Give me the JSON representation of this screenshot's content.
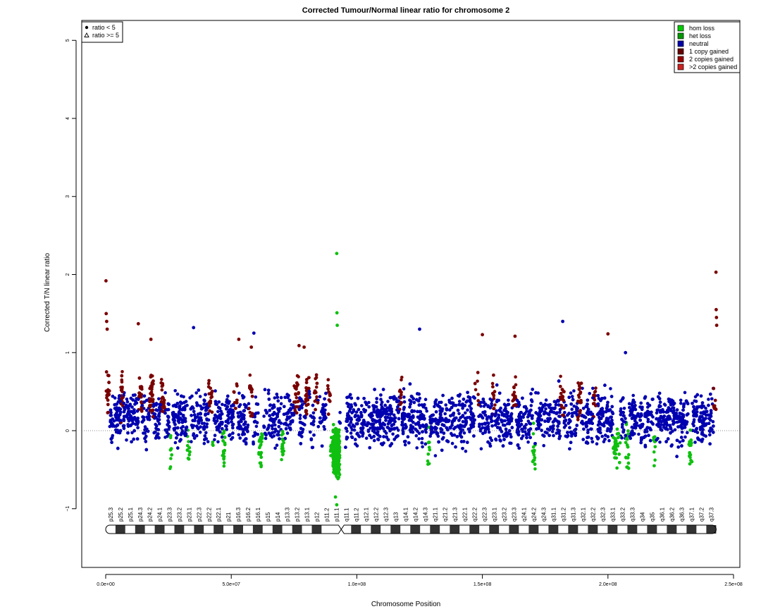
{
  "chart_data": {
    "type": "scatter",
    "title": "Corrected Tumour/Normal linear ratio for chromosome  2",
    "xlabel": "Chromosome Position",
    "ylabel": "Corrected T/N linear ratio",
    "xlim": [
      0,
      250000000
    ],
    "ylim": [
      -1,
      5
    ],
    "x_ticks": [
      {
        "value": 0,
        "label": "0.0e+00"
      },
      {
        "value": 50000000,
        "label": "5.0e+07"
      },
      {
        "value": 100000000,
        "label": "1.0e+08"
      },
      {
        "value": 150000000,
        "label": "1.5e+08"
      },
      {
        "value": 200000000,
        "label": "2.0e+08"
      },
      {
        "value": 250000000,
        "label": "2.5e+08"
      }
    ],
    "y_ticks": [
      {
        "value": -1,
        "label": "−1"
      },
      {
        "value": 0,
        "label": "0"
      },
      {
        "value": 1,
        "label": "1"
      },
      {
        "value": 2,
        "label": "2"
      },
      {
        "value": 3,
        "label": "3"
      },
      {
        "value": 4,
        "label": "4"
      },
      {
        "value": 5,
        "label": "5"
      }
    ],
    "reference_line": {
      "y": 0,
      "style": "dotted"
    },
    "shape_legend": {
      "position": "top-left",
      "items": [
        {
          "label": "ratio < 5",
          "shape": "circle"
        },
        {
          "label": "ratio >= 5",
          "shape": "triangle"
        }
      ]
    },
    "legend": {
      "position": "top-right",
      "items": [
        {
          "label": "hom loss",
          "color": "#00cc00"
        },
        {
          "label": "het loss",
          "color": "#009900"
        },
        {
          "label": "neutral",
          "color": "#0000aa"
        },
        {
          "label": "1 copy gained",
          "color": "#660000"
        },
        {
          "label": "2 copies gained",
          "color": "#990000"
        },
        {
          "label": ">2 copies gained",
          "color": "#cc2222"
        }
      ]
    },
    "series": [
      {
        "name": "neutral",
        "color": "#0000b0",
        "density": "dense",
        "x_range": [
          200000,
          243000000
        ],
        "y_range": [
          -0.6,
          1.1
        ]
      },
      {
        "name": "1 copy gained",
        "color": "#7a0000",
        "outliers": [
          [
            100000,
            1.92
          ],
          [
            200000,
            1.5
          ],
          [
            400000,
            1.4
          ],
          [
            600000,
            1.3
          ],
          [
            13000000,
            1.37
          ],
          [
            18000000,
            1.17
          ],
          [
            53000000,
            1.17
          ],
          [
            58000000,
            1.07
          ],
          [
            77000000,
            1.09
          ],
          [
            79000000,
            1.07
          ],
          [
            150000000,
            1.23
          ],
          [
            163000000,
            1.21
          ],
          [
            200000000,
            1.24
          ],
          [
            243000000,
            2.03
          ],
          [
            243100000,
            1.55
          ],
          [
            243200000,
            1.45
          ],
          [
            243300000,
            1.35
          ]
        ]
      },
      {
        "name": "het loss",
        "color": "#10c010",
        "outliers": [
          [
            92000000,
            2.27
          ],
          [
            92100000,
            1.51
          ],
          [
            92200000,
            1.35
          ],
          [
            92000000,
            -0.95
          ],
          [
            91500000,
            -0.85
          ]
        ]
      },
      {
        "name": "neutral",
        "color": "#0000b0",
        "outliers": [
          [
            35000000,
            1.32
          ],
          [
            59000000,
            1.25
          ],
          [
            125000000,
            1.3
          ],
          [
            182000000,
            1.4
          ],
          [
            207000000,
            1.0
          ]
        ]
      }
    ],
    "gain_segments": [
      {
        "start": 0,
        "end": 1500000
      },
      {
        "start": 6000000,
        "end": 7000000
      },
      {
        "start": 13000000,
        "end": 14500000
      },
      {
        "start": 17500000,
        "end": 19000000
      },
      {
        "start": 22000000,
        "end": 23500000
      },
      {
        "start": 41000000,
        "end": 42500000
      },
      {
        "start": 51000000,
        "end": 52500000
      },
      {
        "start": 57000000,
        "end": 58500000
      },
      {
        "start": 75000000,
        "end": 77000000
      },
      {
        "start": 79500000,
        "end": 81000000
      },
      {
        "start": 83000000,
        "end": 84500000
      },
      {
        "start": 88000000,
        "end": 89500000
      },
      {
        "start": 117000000,
        "end": 118000000
      },
      {
        "start": 147000000,
        "end": 148500000
      },
      {
        "start": 154000000,
        "end": 155000000
      },
      {
        "start": 162000000,
        "end": 163500000
      },
      {
        "start": 181000000,
        "end": 182500000
      },
      {
        "start": 188000000,
        "end": 189500000
      },
      {
        "start": 194000000,
        "end": 195500000
      },
      {
        "start": 242000000,
        "end": 243100000
      }
    ],
    "loss_segments": [
      {
        "start": 25500000,
        "end": 26500000
      },
      {
        "start": 32500000,
        "end": 33500000
      },
      {
        "start": 42000000,
        "end": 43000000
      },
      {
        "start": 46500000,
        "end": 47500000
      },
      {
        "start": 61000000,
        "end": 62500000
      },
      {
        "start": 70000000,
        "end": 71000000
      },
      {
        "start": 89500000,
        "end": 93000000
      },
      {
        "start": 128000000,
        "end": 129000000
      },
      {
        "start": 170000000,
        "end": 171000000
      },
      {
        "start": 202000000,
        "end": 205000000
      },
      {
        "start": 207000000,
        "end": 208500000
      },
      {
        "start": 218000000,
        "end": 219000000
      },
      {
        "start": 232000000,
        "end": 233500000
      }
    ],
    "ideogram": {
      "bands": [
        "p25.3",
        "p25.2",
        "p25.1",
        "p24.3",
        "p24.2",
        "p24.1",
        "p23.3",
        "p23.2",
        "p23.1",
        "p22.3",
        "p22.2",
        "p22.1",
        "p21",
        "p16.3",
        "p16.2",
        "p16.1",
        "p15",
        "p14",
        "p13.3",
        "p13.2",
        "p13.1",
        "p12",
        "p11.2",
        "p11.1",
        "q11.1",
        "q11.2",
        "q12.1",
        "q12.2",
        "q12.3",
        "q13",
        "q14.1",
        "q14.2",
        "q14.3",
        "q21.1",
        "q21.2",
        "q21.3",
        "q22.1",
        "q22.2",
        "q22.3",
        "q23.1",
        "q23.2",
        "q23.3",
        "q24.1",
        "q24.2",
        "q24.3",
        "q31.1",
        "q31.2",
        "q31.3",
        "q32.1",
        "q32.2",
        "q32.3",
        "q33.1",
        "q33.2",
        "q33.3",
        "q34",
        "q35",
        "q36.1",
        "q36.2",
        "q36.3",
        "q37.1",
        "q37.2",
        "q37.3"
      ]
    }
  }
}
